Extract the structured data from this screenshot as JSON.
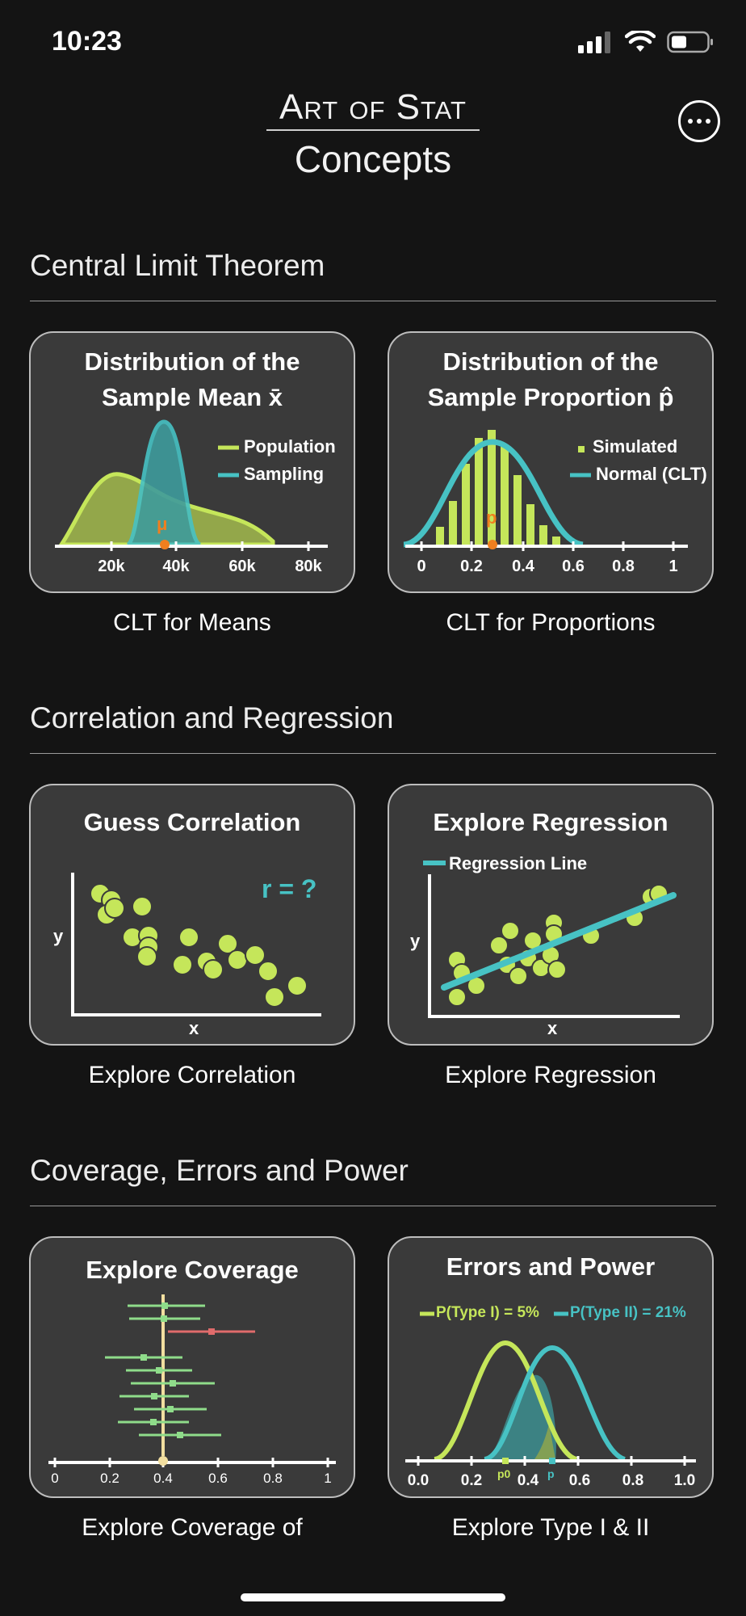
{
  "status": {
    "time": "10:23"
  },
  "header": {
    "brand": "Art of Stat",
    "subtitle": "Concepts"
  },
  "sections": [
    {
      "title": "Central Limit Theorem"
    },
    {
      "title": "Correlation and Regression"
    },
    {
      "title": "Coverage, Errors and Power"
    }
  ],
  "cards": {
    "clt_means": {
      "title1": "Distribution of the",
      "title2": "Sample Mean x̄",
      "legend1": "Population",
      "legend2": "Sampling",
      "mu": "μ",
      "ticks": [
        "20k",
        "40k",
        "60k",
        "80k"
      ],
      "caption": "CLT for Means"
    },
    "clt_props": {
      "title1": "Distribution of the",
      "title2": "Sample Proportion p̂",
      "legend1": "Simulated",
      "legend2": "Normal (CLT)",
      "p": "p",
      "ticks": [
        "0",
        "0.2",
        "0.4",
        "0.6",
        "0.8",
        "1"
      ],
      "caption": "CLT for Proportions"
    },
    "guess_corr": {
      "title": "Guess Correlation",
      "r_label": "r = ?",
      "ylabel": "y",
      "xlabel": "x",
      "caption": "Explore Correlation"
    },
    "explore_reg": {
      "title": "Explore Regression",
      "legend": "Regression Line",
      "ylabel": "y",
      "xlabel": "x",
      "caption": "Explore Regression"
    },
    "coverage": {
      "title": "Explore Coverage",
      "ticks": [
        "0",
        "0.2",
        "0.4",
        "0.6",
        "0.8",
        "1"
      ],
      "caption": "Explore Coverage of"
    },
    "errors": {
      "title": "Errors and Power",
      "legend1": "P(Type I) = 5%",
      "legend2": "P(Type II) = 21%",
      "ticks": [
        "0.0",
        "0.2",
        "0.4",
        "0.6",
        "0.8",
        "1.0"
      ],
      "p0": "p0",
      "p": "p",
      "caption": "Explore Type I & II"
    }
  },
  "colors": {
    "lime": "#c5e65a",
    "teal": "#47c2c4",
    "orange": "#f07f1f",
    "red": "#e06b6b",
    "card_bg": "#3a3a3a"
  }
}
